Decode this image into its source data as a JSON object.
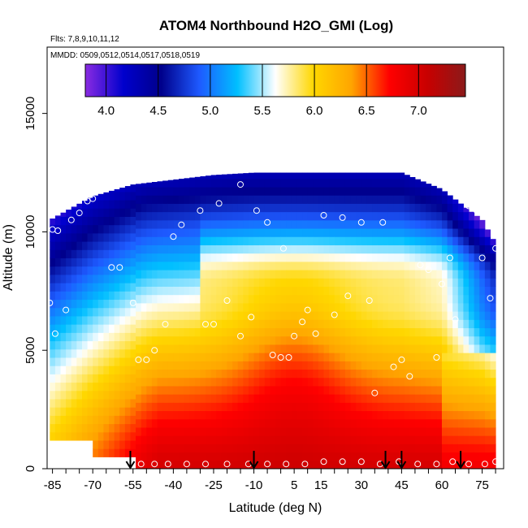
{
  "chart_data": {
    "type": "heatmap",
    "title": "ATOM4 Northbound H2O_GMI (Log)",
    "flights_text": "Flts: 7,8,9,10,11,12",
    "dates_text": "MMDD: 0509,0512,0514,0517,0518,0519",
    "xlabel": "Latitude (deg N)",
    "ylabel": "Altitude (m)",
    "xlim": [
      -87,
      83
    ],
    "ylim": [
      0,
      17800
    ],
    "x_ticks": [
      -85,
      -70,
      -55,
      -40,
      -25,
      -10,
      5,
      15,
      30,
      45,
      60,
      75
    ],
    "x_minor_step": 5,
    "y_ticks": [
      0,
      5000,
      10000,
      15000
    ],
    "colorbar": {
      "range": [
        3.8,
        7.45
      ],
      "ticks": [
        4.0,
        4.5,
        5.0,
        5.5,
        6.0,
        6.5,
        7.0
      ],
      "colors": [
        "#8a2be2",
        "#0000cd",
        "#00008b",
        "#1e5aff",
        "#00bfff",
        "#ffffff",
        "#ffd700",
        "#ffa500",
        "#ff0000",
        "#c80000",
        "#8b1a1a"
      ]
    },
    "field": {
      "lat_range": [
        -86,
        80
      ],
      "surface_value": 7.0,
      "top_value": 4.3,
      "top_altitude_profile": [
        [
          -86,
          10500
        ],
        [
          -70,
          11500
        ],
        [
          -55,
          12000
        ],
        [
          -25,
          12400
        ],
        [
          -10,
          12500
        ],
        [
          45,
          12500
        ],
        [
          60,
          11800
        ],
        [
          75,
          10500
        ],
        [
          80,
          9500
        ]
      ]
    },
    "observation_points": [
      [
        -85,
        10100
      ],
      [
        -83,
        10050
      ],
      [
        -78,
        10500
      ],
      [
        -75,
        10800
      ],
      [
        -72,
        11300
      ],
      [
        -70,
        11400
      ],
      [
        -63,
        8500
      ],
      [
        -60,
        8500
      ],
      [
        -55,
        7000
      ],
      [
        -53,
        4600
      ],
      [
        -50,
        4600
      ],
      [
        -47,
        5000
      ],
      [
        -43,
        6100
      ],
      [
        -40,
        9800
      ],
      [
        -37,
        10300
      ],
      [
        -30,
        10900
      ],
      [
        -28,
        6100
      ],
      [
        -25,
        6100
      ],
      [
        -23,
        11200
      ],
      [
        -20,
        7100
      ],
      [
        -15,
        5600
      ],
      [
        -11,
        6400
      ],
      [
        -9,
        10900
      ],
      [
        -5,
        10400
      ],
      [
        -3,
        4800
      ],
      [
        0,
        4700
      ],
      [
        3,
        4700
      ],
      [
        5,
        5600
      ],
      [
        8,
        6200
      ],
      [
        10,
        6700
      ],
      [
        13,
        5700
      ],
      [
        16,
        10700
      ],
      [
        20,
        6500
      ],
      [
        23,
        10600
      ],
      [
        25,
        7300
      ],
      [
        30,
        10400
      ],
      [
        33,
        7100
      ],
      [
        35,
        3200
      ],
      [
        38,
        10400
      ],
      [
        42,
        4300
      ],
      [
        45,
        4600
      ],
      [
        48,
        3900
      ],
      [
        52,
        8600
      ],
      [
        55,
        8400
      ],
      [
        58,
        4700
      ],
      [
        60,
        7800
      ],
      [
        63,
        8900
      ],
      [
        65,
        6300
      ],
      [
        70,
        11100
      ],
      [
        73,
        10900
      ],
      [
        75,
        8900
      ],
      [
        78,
        7200
      ],
      [
        80,
        9300
      ],
      [
        -80,
        6700
      ],
      [
        -84,
        5700
      ],
      [
        -86,
        7000
      ],
      [
        -57,
        300
      ],
      [
        -52,
        200
      ],
      [
        -47,
        200
      ],
      [
        -42,
        200
      ],
      [
        -35,
        200
      ],
      [
        -28,
        200
      ],
      [
        -20,
        200
      ],
      [
        -12,
        200
      ],
      [
        -5,
        200
      ],
      [
        2,
        200
      ],
      [
        9,
        200
      ],
      [
        16,
        300
      ],
      [
        23,
        300
      ],
      [
        30,
        300
      ],
      [
        37,
        200
      ],
      [
        44,
        300
      ],
      [
        51,
        200
      ],
      [
        58,
        200
      ],
      [
        64,
        300
      ],
      [
        70,
        200
      ],
      [
        76,
        200
      ],
      [
        80,
        300
      ],
      [
        1,
        9300
      ],
      [
        -15,
        12000
      ]
    ],
    "flight_markers_lat": [
      -56,
      -10,
      39,
      45,
      67
    ]
  }
}
